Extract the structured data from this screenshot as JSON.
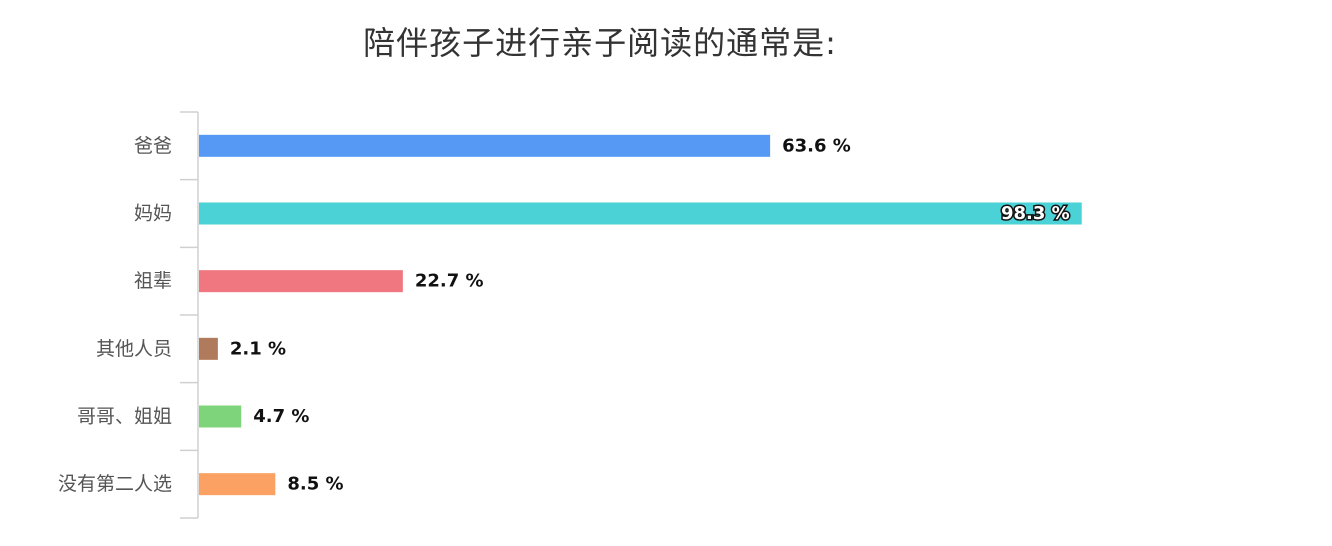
{
  "chart_data": {
    "type": "bar",
    "orientation": "horizontal",
    "title": "陪伴孩子进行亲子阅读的通常是:",
    "categories": [
      "爸爸",
      "妈妈",
      "祖辈",
      "其他人员",
      "哥哥、姐姐",
      "没有第二人选"
    ],
    "values": [
      63.6,
      98.3,
      22.7,
      2.1,
      4.7,
      8.5
    ],
    "value_labels": [
      "63.6 %",
      "98.3 %",
      "22.7 %",
      "2.1 %",
      "4.7 %",
      "8.5 %"
    ],
    "colors": [
      "#5599f5",
      "#4ad2d6",
      "#f07680",
      "#b07a5c",
      "#7ed47a",
      "#fba163"
    ],
    "xlim": [
      0,
      100
    ],
    "grid": false,
    "legend": "none"
  }
}
